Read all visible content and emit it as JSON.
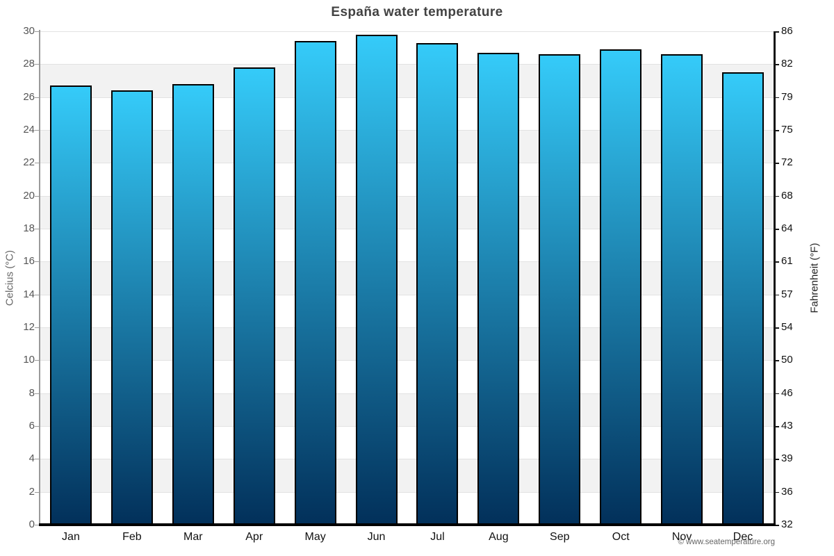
{
  "chart_data": {
    "type": "bar",
    "title": "España water temperature",
    "categories": [
      "Jan",
      "Feb",
      "Mar",
      "Apr",
      "May",
      "Jun",
      "Jul",
      "Aug",
      "Sep",
      "Oct",
      "Nov",
      "Dec"
    ],
    "values": [
      26.7,
      26.4,
      26.8,
      27.8,
      29.4,
      29.8,
      29.3,
      28.7,
      28.6,
      28.9,
      28.6,
      27.5
    ],
    "unit": "°C",
    "ylabel_left": "Celcius (°C)",
    "ylabel_right": "Fahrenheit (°F)",
    "ylim": [
      0,
      30
    ],
    "yticks_celsius": [
      0,
      2,
      4,
      6,
      8,
      10,
      12,
      14,
      16,
      18,
      20,
      22,
      24,
      26,
      28,
      30
    ],
    "yticks_fahrenheit_labels": [
      "32",
      "36",
      "39",
      "43",
      "46",
      "50",
      "54",
      "57",
      "61",
      "64",
      "68",
      "72",
      "75",
      "79",
      "82",
      "86"
    ],
    "grid": "horizontal alternating bands every 2°C",
    "legend": "none"
  },
  "footer": {
    "credit": "© www.seatemperature.org"
  },
  "colors": {
    "bar_gradient_top": "#35CBF9",
    "bar_gradient_bottom": "#02305A",
    "bar_border": "#000000",
    "band_gray": "#f2f2f2",
    "band_white": "#ffffff",
    "gridline": "#e2e2e2",
    "axis_left": "#9a9a9a",
    "axis_right": "#151515",
    "axis_bottom": "#000000",
    "title_text": "#424242",
    "tick_text_left": "#555555",
    "tick_text_right": "#111111",
    "month_text": "#111111",
    "ylabel_left_text": "#666666",
    "ylabel_right_text": "#222222",
    "credit_text": "#666666"
  }
}
